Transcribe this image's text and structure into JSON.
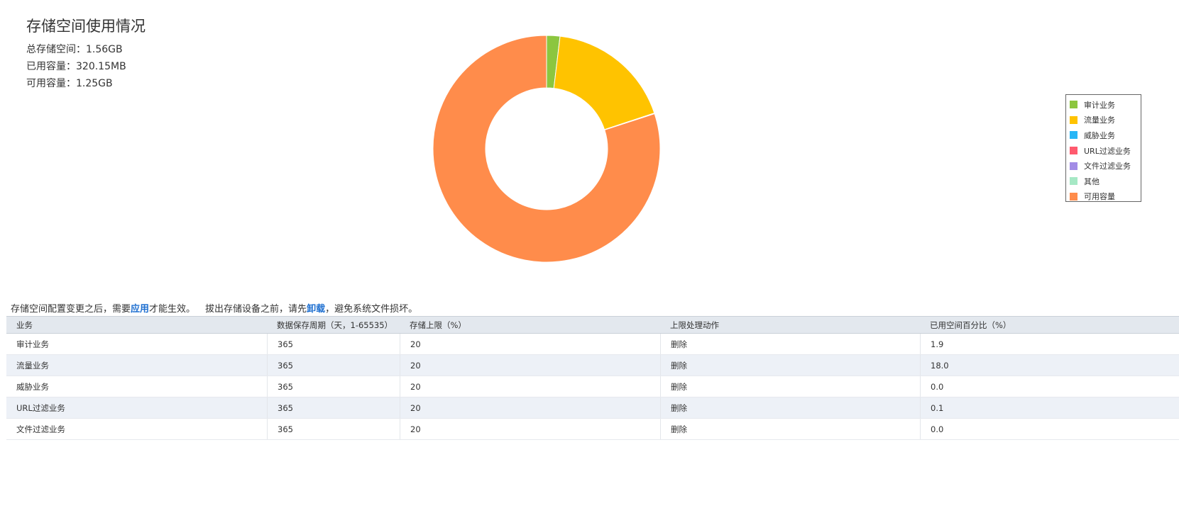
{
  "summary": {
    "title": "存储空间使用情况",
    "total": "总存储空间：1.56GB",
    "used": "已用容量：320.15MB",
    "available": "可用容量：1.25GB"
  },
  "chart_data": {
    "type": "pie",
    "donut": true,
    "legend_position": "right",
    "slices": [
      {
        "name": "审计业务",
        "value": 1.9,
        "color": "#8cc63f"
      },
      {
        "name": "流量业务",
        "value": 18.0,
        "color": "#ffc300"
      },
      {
        "name": "威胁业务",
        "value": 0.0,
        "color": "#29b6f6"
      },
      {
        "name": "URL过滤业务",
        "value": 0.1,
        "color": "#ff5a6e"
      },
      {
        "name": "文件过滤业务",
        "value": 0.0,
        "color": "#a28ce6"
      },
      {
        "name": "其他",
        "value": 0.0,
        "color": "#a6e8c5"
      },
      {
        "name": "可用容量",
        "value": 80.0,
        "color": "#ff8c4b"
      }
    ]
  },
  "notice": {
    "part1": "存储空间配置变更之后，需要",
    "apply_link": "应用",
    "part2": "才能生效。",
    "part3": "拔出存储设备之前，请先",
    "unmount_link": "卸载",
    "part4": "，避免系统文件损坏。"
  },
  "table": {
    "headers": [
      "业务",
      "数据保存周期（天，1-65535）",
      "存储上限（%）",
      "上限处理动作",
      "已用空间百分比（%）"
    ],
    "rows": [
      [
        "审计业务",
        "365",
        "20",
        "删除",
        "1.9"
      ],
      [
        "流量业务",
        "365",
        "20",
        "删除",
        "18.0"
      ],
      [
        "威胁业务",
        "365",
        "20",
        "删除",
        "0.0"
      ],
      [
        "URL过滤业务",
        "365",
        "20",
        "删除",
        "0.1"
      ],
      [
        "文件过滤业务",
        "365",
        "20",
        "删除",
        "0.0"
      ]
    ]
  }
}
